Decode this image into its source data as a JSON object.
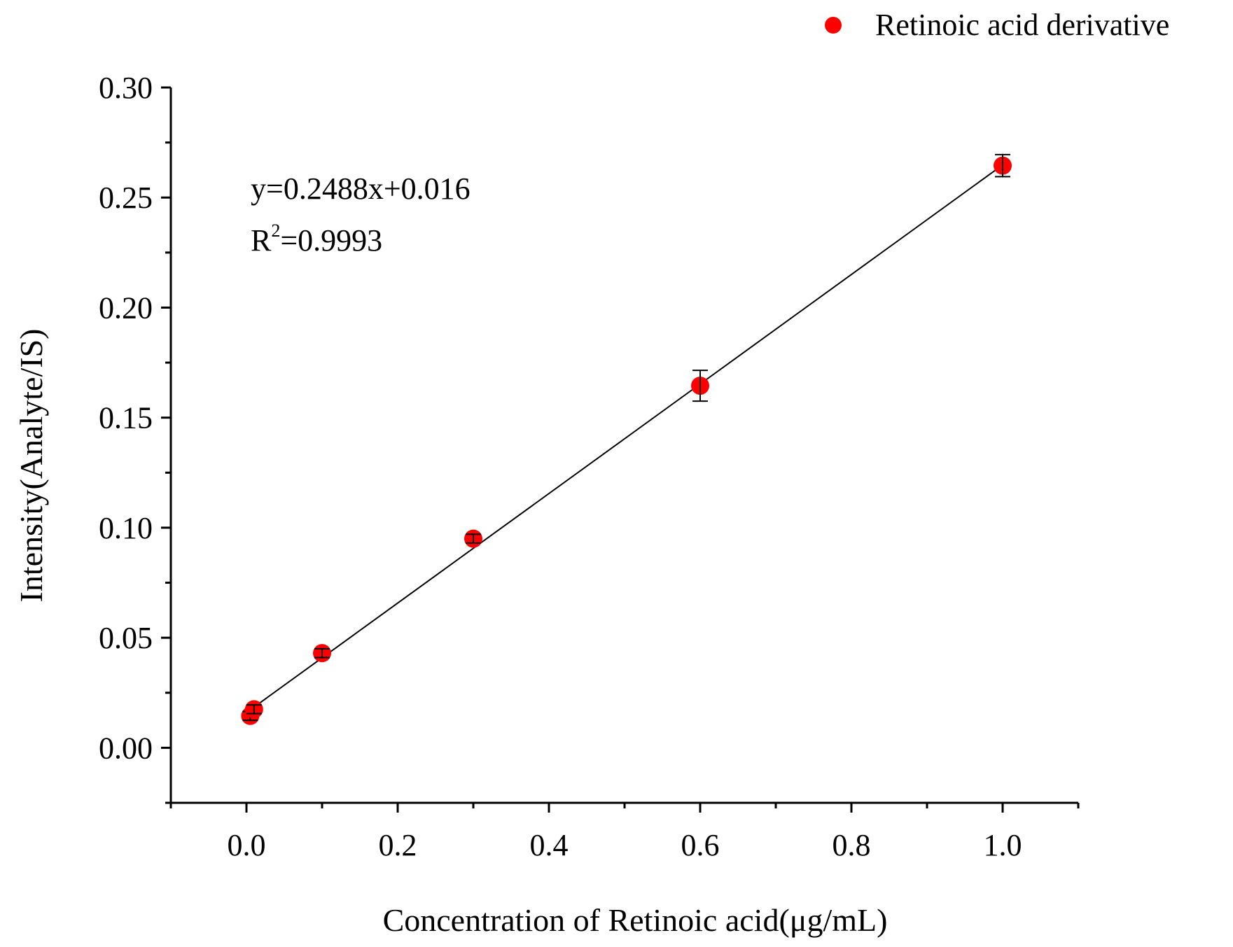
{
  "chart_data": {
    "type": "scatter",
    "xlabel": "Concentration of Retinoic acid(μg/mL)",
    "ylabel": "Intensity(Analyte/IS)",
    "xlim": [
      -0.1,
      1.1
    ],
    "ylim": [
      -0.025,
      0.3
    ],
    "x_ticks": [
      0.0,
      0.2,
      0.4,
      0.6,
      0.8,
      1.0
    ],
    "x_tick_labels": [
      "0.0",
      "0.2",
      "0.4",
      "0.6",
      "0.8",
      "1.0"
    ],
    "y_ticks": [
      0.0,
      0.05,
      0.1,
      0.15,
      0.2,
      0.25,
      0.3
    ],
    "y_tick_labels": [
      "0.00",
      "0.05",
      "0.10",
      "0.15",
      "0.20",
      "0.25",
      "0.30"
    ],
    "grid": false,
    "legend": {
      "position": "top-right",
      "entries": [
        "Retinoic acid derivative"
      ]
    },
    "series": [
      {
        "name": "Retinoic acid derivative",
        "color": "#ff0000",
        "points": [
          {
            "x": 0.005,
            "y": 0.0145,
            "err": 0.002
          },
          {
            "x": 0.01,
            "y": 0.0175,
            "err": 0.002
          },
          {
            "x": 0.1,
            "y": 0.043,
            "err": 0.002
          },
          {
            "x": 0.3,
            "y": 0.095,
            "err": 0.002
          },
          {
            "x": 0.6,
            "y": 0.1645,
            "err": 0.007
          },
          {
            "x": 1.0,
            "y": 0.2645,
            "err": 0.005
          }
        ]
      }
    ],
    "fit": {
      "slope": 0.2488,
      "intercept": 0.016,
      "x_range": [
        0.005,
        1.0
      ],
      "color": "#000000"
    },
    "annotations": {
      "equation": "y=0.2488x+0.016",
      "r2_base": "R",
      "r2_sup": "2",
      "r2_value": "=0.9993"
    }
  }
}
